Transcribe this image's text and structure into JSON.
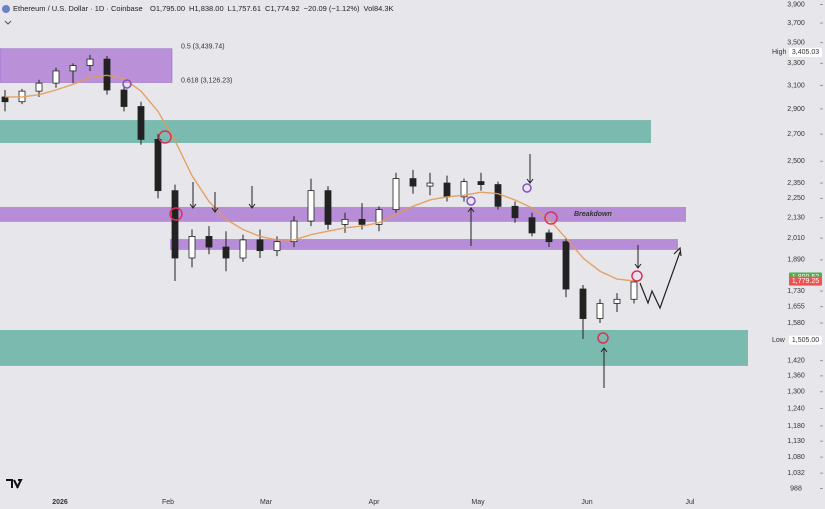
{
  "header": {
    "symbol": "Ethereum / U.S. Dollar · 1D · Coinbase",
    "stats": [
      "O1,795.00",
      "H1,838.00",
      "L1,757.61",
      "C1,774.92",
      "−20.09 (−1.12%)",
      "Vol84.3K"
    ]
  },
  "chart_data": {
    "type": "candlestick",
    "log_scale": true,
    "x_labels": [
      "2026",
      "Feb",
      "Mar",
      "Apr",
      "May",
      "Jun",
      "Jul"
    ],
    "ylim": [
      970,
      3950
    ],
    "yticks": [
      {
        "value": 3900,
        "label": "3,900"
      },
      {
        "value": 3700,
        "label": "3,700"
      },
      {
        "value": 3500,
        "label": "3,500"
      },
      {
        "value": 3300,
        "label": "3,300"
      },
      {
        "value": 3100,
        "label": "3,100"
      },
      {
        "value": 2900,
        "label": "2,900"
      },
      {
        "value": 2700,
        "label": "2,700"
      },
      {
        "value": 2500,
        "label": "2,500"
      },
      {
        "value": 2350,
        "label": "2,350"
      },
      {
        "value": 2250,
        "label": "2,250"
      },
      {
        "value": 2130,
        "label": "2,130"
      },
      {
        "value": 2010,
        "label": "2,010"
      },
      {
        "value": 1890,
        "label": "1,890"
      },
      {
        "value": 1730,
        "label": "1,730"
      },
      {
        "value": 1655,
        "label": "1,655"
      },
      {
        "value": 1580,
        "label": "1,580"
      },
      {
        "value": 1420,
        "label": "1,420"
      },
      {
        "value": 1360,
        "label": "1,360"
      },
      {
        "value": 1300,
        "label": "1,300"
      },
      {
        "value": 1240,
        "label": "1,240"
      },
      {
        "value": 1180,
        "label": "1,180"
      },
      {
        "value": 1130,
        "label": "1,130"
      },
      {
        "value": 1080,
        "label": "1,080"
      },
      {
        "value": 1032,
        "label": "1,032"
      },
      988
    ],
    "up_color": "#ffffff",
    "down_color": "#222222",
    "open": [
      3000,
      2960,
      3050,
      3120,
      3230,
      3280,
      3340,
      3060,
      2920,
      2660,
      2300,
      1900,
      2020,
      1960,
      1900,
      2000,
      1940,
      1990,
      2110,
      2300,
      2090,
      2120,
      2090,
      2180,
      2380,
      2330,
      2350,
      2260,
      2360,
      2340,
      2200,
      2130,
      2040,
      1990,
      1740,
      1600,
      1670,
      1690
    ],
    "high": [
      3060,
      3070,
      3150,
      3260,
      3300,
      3380,
      3370,
      3100,
      2960,
      2700,
      2340,
      2060,
      2080,
      2050,
      2030,
      2060,
      2020,
      2140,
      2380,
      2330,
      2160,
      2220,
      2200,
      2420,
      2440,
      2420,
      2400,
      2380,
      2420,
      2360,
      2230,
      2160,
      2060,
      2010,
      1760,
      1690,
      1720,
      1790
    ],
    "low": [
      2880,
      2940,
      3000,
      3080,
      3120,
      3230,
      3020,
      2880,
      2620,
      2250,
      1780,
      1850,
      1920,
      1830,
      1880,
      1900,
      1910,
      1960,
      2080,
      2060,
      2040,
      2060,
      2050,
      2160,
      2280,
      2270,
      2230,
      2230,
      2300,
      2180,
      2100,
      2020,
      1960,
      1700,
      1510,
      1580,
      1630,
      1670
    ],
    "close": [
      2960,
      3050,
      3120,
      3230,
      3280,
      3340,
      3060,
      2920,
      2660,
      2300,
      1900,
      2020,
      1960,
      1900,
      2000,
      1940,
      1990,
      2110,
      2300,
      2090,
      2120,
      2090,
      2180,
      2380,
      2330,
      2350,
      2260,
      2360,
      2340,
      2200,
      2130,
      2040,
      1990,
      1740,
      1600,
      1670,
      1690,
      1775
    ],
    "moving_average": {
      "color": "#e39a56",
      "values": [
        3000,
        3000,
        3020,
        3060,
        3110,
        3170,
        3190,
        3160,
        3050,
        2880,
        2650,
        2400,
        2230,
        2120,
        2060,
        2020,
        2000,
        2000,
        2030,
        2050,
        2070,
        2080,
        2100,
        2150,
        2200,
        2240,
        2260,
        2270,
        2290,
        2280,
        2240,
        2190,
        2120,
        2010,
        1900,
        1830,
        1790,
        1780
      ]
    },
    "fib_levels": [
      {
        "value": 3439.74,
        "label": "0.5 (3,439.74)"
      },
      {
        "value": 3126.23,
        "label": "0.618 (3,126.23)"
      }
    ],
    "zones": [
      {
        "color": "#6fb5a8",
        "range": [
          2633,
          2810
        ]
      },
      {
        "color": "#b383d6",
        "range": [
          2105,
          2196
        ]
      },
      {
        "color": "#b383d6",
        "range": [
          1944,
          2005
        ]
      },
      {
        "color": "#6fb5a8",
        "range": [
          1399,
          1549
        ]
      }
    ],
    "fib_zone_color": "#b383d6",
    "annotation": "Breakdown",
    "price_tags": [
      {
        "name": "High",
        "price": {
          "value": 3405.03,
          "label": "3,405.03"
        },
        "color": "#ffffff"
      },
      {
        "name": "Low",
        "price": {
          "value": 1505.0,
          "label": "1,505.00"
        },
        "color": "#ffffff"
      },
      {
        "price": {
          "value": 1800.52,
          "label": "1,800.52"
        },
        "color": "#4caf50"
      },
      {
        "price": {
          "value": 1779.25,
          "label": "1,779.25"
        },
        "color": "#ef5350"
      }
    ]
  }
}
